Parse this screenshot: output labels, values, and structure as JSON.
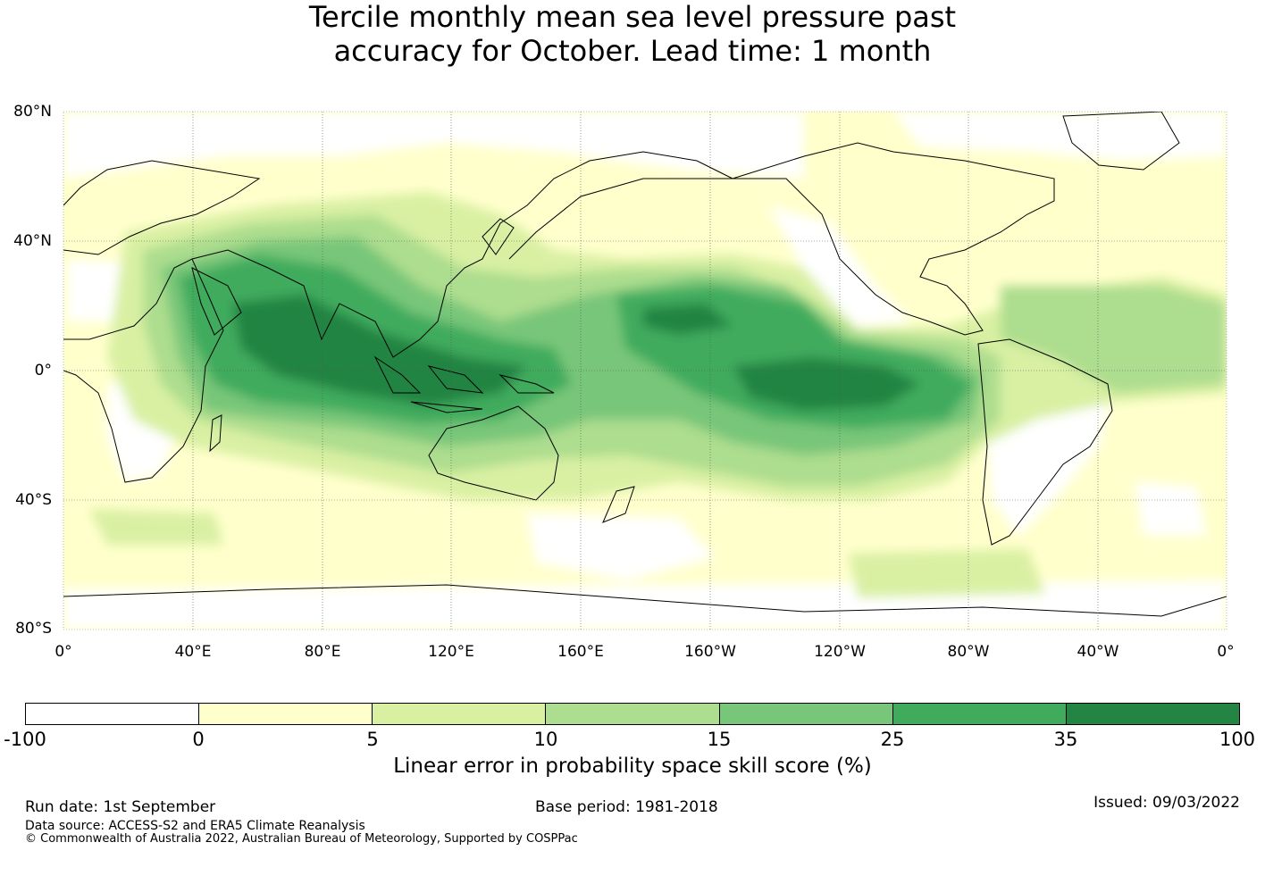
{
  "title": {
    "line1": "Tercile monthly mean sea level pressure past",
    "line2": "accuracy for October. Lead time: 1 month"
  },
  "map": {
    "projection": "equirectangular, 0° to 360° longitude, 80°S to 80°N",
    "grid": true,
    "lat_labels": [
      "80°N",
      "40°N",
      "0°",
      "40°S",
      "80°S"
    ],
    "lon_labels": [
      "0°",
      "40°E",
      "80°E",
      "120°E",
      "160°E",
      "160°W",
      "120°W",
      "80°W",
      "40°W",
      "0°"
    ]
  },
  "colorbar": {
    "ticks": [
      "-100",
      "0",
      "5",
      "10",
      "15",
      "25",
      "35",
      "100"
    ],
    "colors": [
      "#ffffff",
      "#ffffcc",
      "#d9f0a3",
      "#addd8e",
      "#78c679",
      "#41ab5d",
      "#238443"
    ],
    "label": "Linear error in probability space skill score (%)"
  },
  "footer": {
    "run_date": "Run date: 1st September",
    "base_period": "Base period: 1981-2018",
    "issued": "Issued: 09/03/2022",
    "data_source": "Data source: ACCESS-S2 and ERA5 Climate Reanalysis",
    "copyright": "© Commonwealth of Australia 2022, Australian Bureau of Meteorology, Supported by COSPPac"
  }
}
